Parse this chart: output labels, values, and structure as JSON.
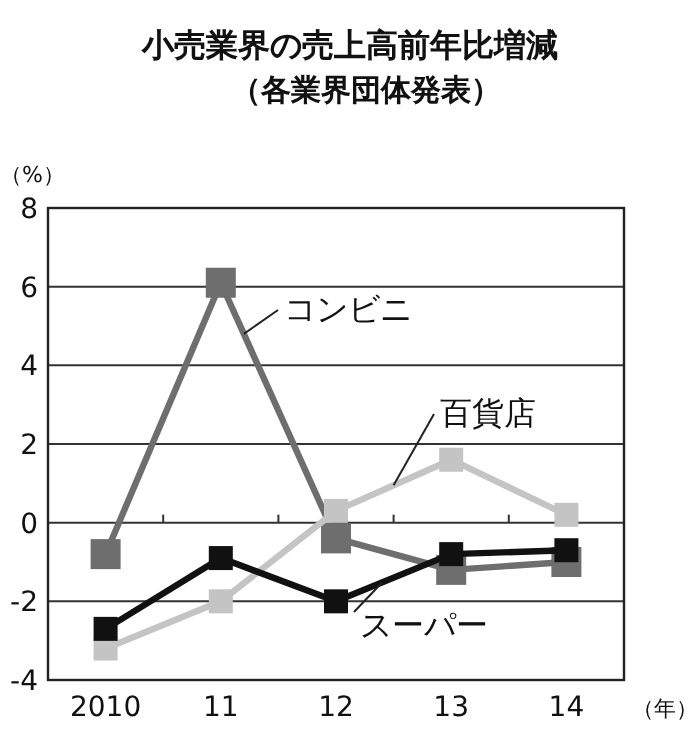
{
  "chart_data": {
    "type": "line",
    "title": "小売業界の売上高前年比増減",
    "subtitle": "（各業界団体発表）",
    "ylabel": "（%）",
    "xlabel": "（年）",
    "categories": [
      "2010",
      "11",
      "12",
      "13",
      "14"
    ],
    "series": [
      {
        "name": "コンビニ",
        "color": "#6e6e6e",
        "values": [
          -0.8,
          6.1,
          -0.4,
          -1.2,
          -1.0
        ]
      },
      {
        "name": "百貨店",
        "color": "#c4c4c4",
        "values": [
          -3.2,
          -2.0,
          0.3,
          1.6,
          0.2
        ]
      },
      {
        "name": "スーパー",
        "color": "#111111",
        "values": [
          -2.7,
          -0.9,
          -2.0,
          -0.8,
          -0.7
        ]
      }
    ],
    "ylim": [
      -4,
      8
    ],
    "yticks": [
      -4,
      -2,
      0,
      2,
      4,
      6,
      8
    ],
    "grid": "y",
    "marker": "square",
    "line_style": "solid",
    "legend": false
  }
}
